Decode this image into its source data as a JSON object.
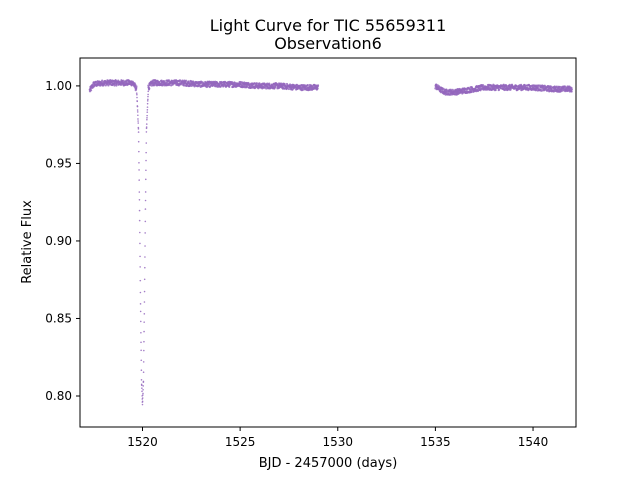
{
  "chart_data": {
    "type": "scatter",
    "title": "Light Curve for TIC 55659311",
    "subtitle": "Observation6",
    "xlabel": "BJD - 2457000 (days)",
    "ylabel": "Relative Flux",
    "xlim": [
      1516.8,
      1542.2
    ],
    "ylim": [
      0.78,
      1.018
    ],
    "x_ticks": [
      1520,
      1525,
      1530,
      1535,
      1540
    ],
    "y_ticks": [
      0.8,
      0.85,
      0.9,
      0.95,
      1.0
    ],
    "x_tick_labels": [
      "1520",
      "1525",
      "1530",
      "1535",
      "1540"
    ],
    "y_tick_labels": [
      "0.80",
      "0.85",
      "0.90",
      "0.95",
      "1.00"
    ],
    "grid": false,
    "marker_color": "#9467bd",
    "series": [
      {
        "segments": [
          {
            "x": [
              1517.3,
              1517.5,
              1518.0,
              1518.5,
              1519.0,
              1519.5,
              1519.7,
              1519.8,
              1519.85,
              1519.9,
              1519.95,
              1520.0,
              1520.05,
              1520.1,
              1520.15,
              1520.2,
              1520.3,
              1520.5,
              1521.0,
              1522.0,
              1523.0,
              1524.0,
              1525.0,
              1526.0,
              1527.0,
              1528.0,
              1529.0
            ],
            "y": [
              0.997,
              1.001,
              1.002,
              1.002,
              1.002,
              1.002,
              0.998,
              0.97,
              0.92,
              0.86,
              0.81,
              0.795,
              0.81,
              0.86,
              0.92,
              0.97,
              0.999,
              1.002,
              1.002,
              1.002,
              1.001,
              1.001,
              1.001,
              1.0,
              1.0,
              0.999,
              0.999
            ]
          },
          {
            "x": [
              1535.0,
              1535.2,
              1535.5,
              1536.0,
              1536.5,
              1537.0,
              1537.5,
              1538.0,
              1539.0,
              1540.0,
              1541.0,
              1542.0
            ],
            "y": [
              1.0,
              0.998,
              0.996,
              0.996,
              0.997,
              0.998,
              0.999,
              0.999,
              0.999,
              0.999,
              0.998,
              0.998
            ]
          }
        ]
      }
    ]
  }
}
